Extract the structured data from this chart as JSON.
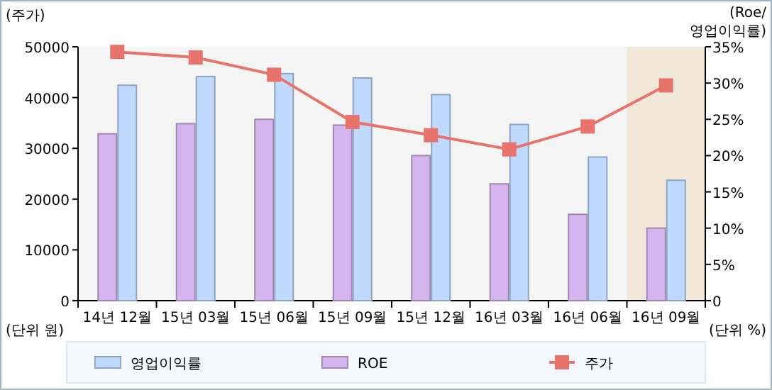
{
  "chart_data": {
    "type": "bar",
    "ylabel": "(주가)",
    "y2label": "(Roe/ 영업이익률)",
    "categories": [
      "14년 12월",
      "15년 03월",
      "15년 06월",
      "15년 09월",
      "15년 12월",
      "16년 03월",
      "16년 06월",
      "16년 09월"
    ],
    "series": [
      {
        "name": "ROE",
        "axis": "y2",
        "color": "#d5b5ee",
        "values": [
          23.1,
          24.5,
          25.1,
          24.3,
          20.1,
          16.2,
          12.0,
          10.1
        ]
      },
      {
        "name": "영업이익률",
        "axis": "y2",
        "color": "#c0daff",
        "values": [
          29.8,
          31.0,
          31.4,
          30.8,
          28.5,
          24.4,
          19.9,
          16.7
        ]
      },
      {
        "name": "주가",
        "type": "line",
        "axis": "y",
        "color": "#e8736c",
        "marker": "square",
        "values": [
          49000,
          47900,
          44500,
          35200,
          32600,
          29800,
          34300,
          42400
        ]
      }
    ],
    "ylim": [
      0,
      50000
    ],
    "yticks": [
      0,
      10000,
      20000,
      30000,
      40000,
      50000
    ],
    "y2lim": [
      0,
      35
    ],
    "y2ticks": [
      0,
      {
        "value": 5,
        "label": "5%"
      },
      {
        "value": 10,
        "label": "10%"
      },
      {
        "value": 15,
        "label": "15%"
      },
      {
        "value": 20,
        "label": "20%"
      },
      {
        "value": 25,
        "label": "25%"
      },
      {
        "value": 30,
        "label": "30%"
      },
      {
        "value": 35,
        "label": "35%"
      }
    ],
    "bands": [
      {
        "axis": "x",
        "from": "16년 09월",
        "to": "16년 09월",
        "color": "#f2e8d9"
      }
    ],
    "legend": "bottom",
    "annotations": [
      "(단위 원)",
      "(단위 %)"
    ]
  }
}
